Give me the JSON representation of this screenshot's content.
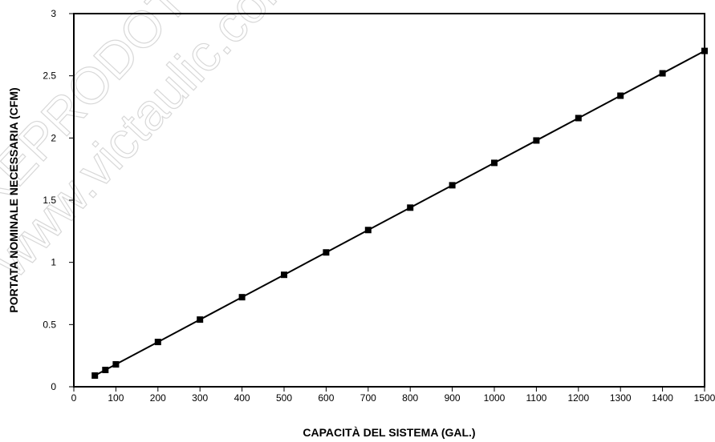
{
  "chart_data": {
    "type": "line",
    "title": "",
    "xlabel": "CAPACITÀ DEL SISTEMA (GAL.)",
    "ylabel": "PORTATA NOMINALE NECESSARIA (CFM)",
    "xlim": [
      0,
      1500
    ],
    "ylim": [
      0,
      3
    ],
    "xticks": [
      0,
      100,
      200,
      300,
      400,
      500,
      600,
      700,
      800,
      900,
      1000,
      1100,
      1200,
      1300,
      1400,
      1500
    ],
    "yticks": [
      0,
      0.5,
      1,
      1.5,
      2,
      2.5,
      3
    ],
    "grid": false,
    "legend": "none",
    "marker": "square",
    "series": [
      {
        "x": [
          50,
          75,
          100,
          200,
          300,
          400,
          500,
          600,
          700,
          800,
          900,
          1000,
          1100,
          1200,
          1300,
          1400,
          1500
        ],
        "y": [
          0.09,
          0.135,
          0.18,
          0.36,
          0.54,
          0.72,
          0.9,
          1.08,
          1.26,
          1.44,
          1.62,
          1.8,
          1.98,
          2.16,
          2.34,
          2.52,
          2.7
        ]
      }
    ],
    "colors": {
      "line": "#000000",
      "marker": "#000000",
      "axis": "#000000"
    }
  },
  "watermarks": [
    "REPRODOTTO",
    "www.victaulic.com"
  ]
}
